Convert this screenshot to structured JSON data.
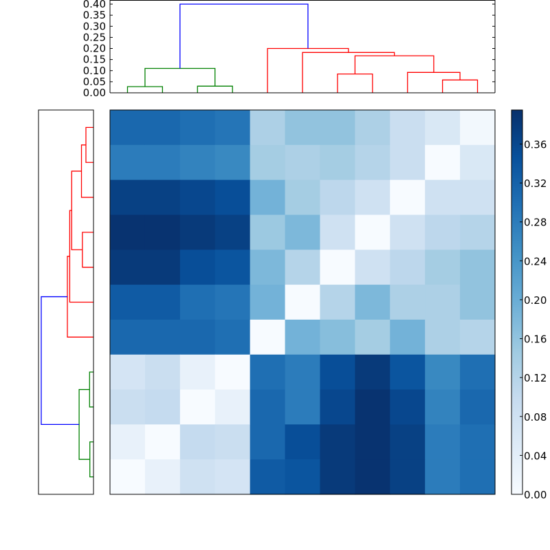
{
  "chart_data": {
    "type": "heatmap",
    "title": "",
    "description": "Clustered heatmap of an 11x11 distance matrix with row and column dendrograms",
    "colormap": "Blues",
    "colorbar": {
      "min": 0.0,
      "max": 0.395,
      "ticks": [
        "0.00",
        "0.04",
        "0.08",
        "0.12",
        "0.16",
        "0.20",
        "0.24",
        "0.28",
        "0.32",
        "0.36"
      ]
    },
    "top_dendrogram": {
      "ylim": [
        0.0,
        0.4
      ],
      "yticks": [
        "0.00",
        "0.05",
        "0.10",
        "0.15",
        "0.20",
        "0.25",
        "0.30",
        "0.35",
        "0.40"
      ],
      "clusters": [
        {
          "color": "#008000",
          "leaves": [
            0,
            1,
            2,
            3
          ]
        },
        {
          "color": "#ff0000",
          "leaves": [
            4,
            5,
            6,
            7,
            8,
            9,
            10
          ]
        }
      ],
      "root_color": "#0000ff",
      "merges": [
        {
          "left": "L0",
          "right": "L1",
          "height": 0.028,
          "color": "#008000"
        },
        {
          "left": "L2",
          "right": "L3",
          "height": 0.03,
          "color": "#008000"
        },
        {
          "left": "L0-L1",
          "right": "L2-L3",
          "height": 0.11,
          "color": "#008000"
        },
        {
          "left": "L9",
          "right": "L10",
          "height": 0.058,
          "color": "#ff0000"
        },
        {
          "left": "L6",
          "right": "L7",
          "height": 0.085,
          "color": "#ff0000"
        },
        {
          "left": "L8",
          "right": "L9-L10",
          "height": 0.092,
          "color": "#ff0000"
        },
        {
          "left": "L6-L7",
          "right": "L8-L10",
          "height": 0.167,
          "color": "#ff0000"
        },
        {
          "left": "L5",
          "right": "L6-L10",
          "height": 0.182,
          "color": "#ff0000"
        },
        {
          "left": "L4",
          "right": "L5-L10",
          "height": 0.2,
          "color": "#ff0000"
        },
        {
          "left": "green",
          "right": "red",
          "height": 0.4,
          "color": "#0000ff"
        }
      ]
    },
    "left_dendrogram": {
      "orientation": "left",
      "clusters": [
        {
          "color": "#ff0000",
          "rows": [
            0,
            1,
            2,
            3,
            4,
            5,
            6
          ]
        },
        {
          "color": "#008000",
          "rows": [
            7,
            8,
            9,
            10
          ]
        }
      ],
      "root_color": "#0000ff"
    },
    "matrix": [
      [
        0.31,
        0.31,
        0.3,
        0.29,
        0.13,
        0.16,
        0.16,
        0.13,
        0.09,
        0.06,
        0.01
      ],
      [
        0.28,
        0.28,
        0.27,
        0.26,
        0.14,
        0.13,
        0.14,
        0.12,
        0.09,
        0.0,
        0.06
      ],
      [
        0.37,
        0.37,
        0.36,
        0.35,
        0.19,
        0.14,
        0.11,
        0.08,
        0.0,
        0.08,
        0.08
      ],
      [
        0.39,
        0.39,
        0.38,
        0.37,
        0.15,
        0.18,
        0.08,
        0.0,
        0.08,
        0.11,
        0.12
      ],
      [
        0.38,
        0.38,
        0.35,
        0.34,
        0.18,
        0.12,
        0.0,
        0.08,
        0.11,
        0.14,
        0.16
      ],
      [
        0.33,
        0.33,
        0.3,
        0.29,
        0.19,
        0.0,
        0.12,
        0.18,
        0.13,
        0.13,
        0.16
      ],
      [
        0.31,
        0.31,
        0.31,
        0.3,
        0.0,
        0.19,
        0.17,
        0.14,
        0.19,
        0.13,
        0.12
      ],
      [
        0.07,
        0.09,
        0.03,
        0.0,
        0.3,
        0.28,
        0.35,
        0.38,
        0.34,
        0.26,
        0.3
      ],
      [
        0.09,
        0.1,
        0.0,
        0.03,
        0.31,
        0.28,
        0.36,
        0.39,
        0.36,
        0.27,
        0.31
      ],
      [
        0.03,
        0.0,
        0.1,
        0.09,
        0.31,
        0.35,
        0.38,
        0.39,
        0.37,
        0.28,
        0.3
      ],
      [
        0.0,
        0.03,
        0.08,
        0.07,
        0.33,
        0.34,
        0.38,
        0.39,
        0.37,
        0.28,
        0.3
      ]
    ]
  },
  "labels": {
    "top_yticks": [
      "0.00",
      "0.05",
      "0.10",
      "0.15",
      "0.20",
      "0.25",
      "0.30",
      "0.35",
      "0.40"
    ],
    "colorbar_ticks": [
      "0.00",
      "0.04",
      "0.08",
      "0.12",
      "0.16",
      "0.20",
      "0.24",
      "0.28",
      "0.32",
      "0.36"
    ]
  }
}
